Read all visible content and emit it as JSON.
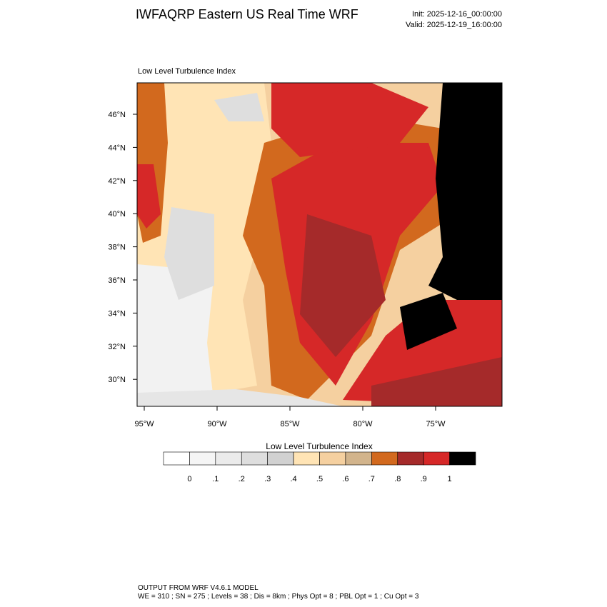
{
  "header": {
    "title": "IWFAQRP Eastern US Real Time WRF",
    "init": "Init: 2025-12-16_00:00:00",
    "valid": "Valid: 2025-12-19_16:00:00"
  },
  "map": {
    "title": "Low Level Turbulence Index",
    "lat_labels": [
      "46°N",
      "44°N",
      "42°N",
      "40°N",
      "38°N",
      "36°N",
      "34°N",
      "32°N",
      "30°N"
    ],
    "lon_labels": [
      "95°W",
      "90°W",
      "85°W",
      "80°W",
      "75°W"
    ]
  },
  "colorbar": {
    "title": "Low Level Turbulence Index",
    "colors": [
      "#ffffff",
      "#f5f5f5",
      "#ebebeb",
      "#dedede",
      "#d1d1d1",
      "#ffe4b5",
      "#f5d0a0",
      "#d2b48c",
      "#d2691e",
      "#a52a2a",
      "#d62828",
      "#000000"
    ],
    "labels": [
      "0",
      ".1",
      ".2",
      ".3",
      ".4",
      ".5",
      ".6",
      ".7",
      ".8",
      ".9",
      "1"
    ]
  },
  "footer": {
    "line1": "OUTPUT FROM WRF V4.6.1 MODEL",
    "line2": "WE = 310 ; SN = 275 ; Levels = 38 ; Dis = 8km ; Phys Opt = 8 ; PBL Opt = 1 ; Cu Opt = 3"
  }
}
